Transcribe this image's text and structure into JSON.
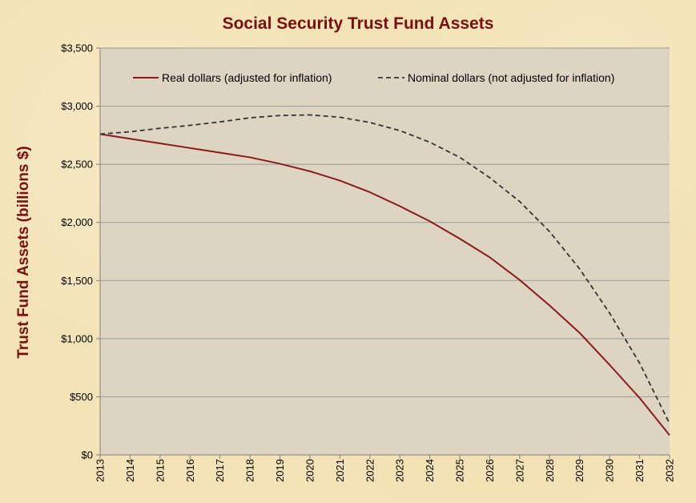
{
  "chart_data": {
    "type": "line",
    "title": "Social Security Trust Fund Assets",
    "ylabel": "Trust Fund  Assets (billions $)",
    "xlabel": "",
    "ylim": [
      0,
      3500
    ],
    "y_ticks": [
      0,
      500,
      1000,
      1500,
      2000,
      2500,
      3000,
      3500
    ],
    "y_tick_labels": [
      "$0",
      "$500",
      "$1,000",
      "$1,500",
      "$2,000",
      "$2,500",
      "$3,000",
      "$3,500"
    ],
    "grid": true,
    "legend_position": "top",
    "x": [
      "2013",
      "2014",
      "2015",
      "2016",
      "2017",
      "2018",
      "2019",
      "2020",
      "2021",
      "2022",
      "2023",
      "2024",
      "2025",
      "2026",
      "2027",
      "2028",
      "2029",
      "2030",
      "2031",
      "2032"
    ],
    "series": [
      {
        "name": "Real dollars (adjusted for inflation)",
        "style": "solid",
        "color": "#8b1a1a",
        "values": [
          2760,
          2720,
          2680,
          2640,
          2600,
          2560,
          2505,
          2440,
          2360,
          2260,
          2140,
          2010,
          1860,
          1700,
          1505,
          1285,
          1050,
          775,
          490,
          170
        ]
      },
      {
        "name": "Nominal dollars (not adjusted for inflation)",
        "style": "dashed",
        "color": "#333333",
        "values": [
          2760,
          2780,
          2810,
          2835,
          2865,
          2900,
          2920,
          2925,
          2905,
          2860,
          2790,
          2690,
          2560,
          2385,
          2180,
          1920,
          1600,
          1220,
          790,
          270
        ]
      }
    ]
  },
  "colors": {
    "plot_background": "#ddd5c2",
    "gridline": "#9a9a9a",
    "title": "#7a1010"
  }
}
